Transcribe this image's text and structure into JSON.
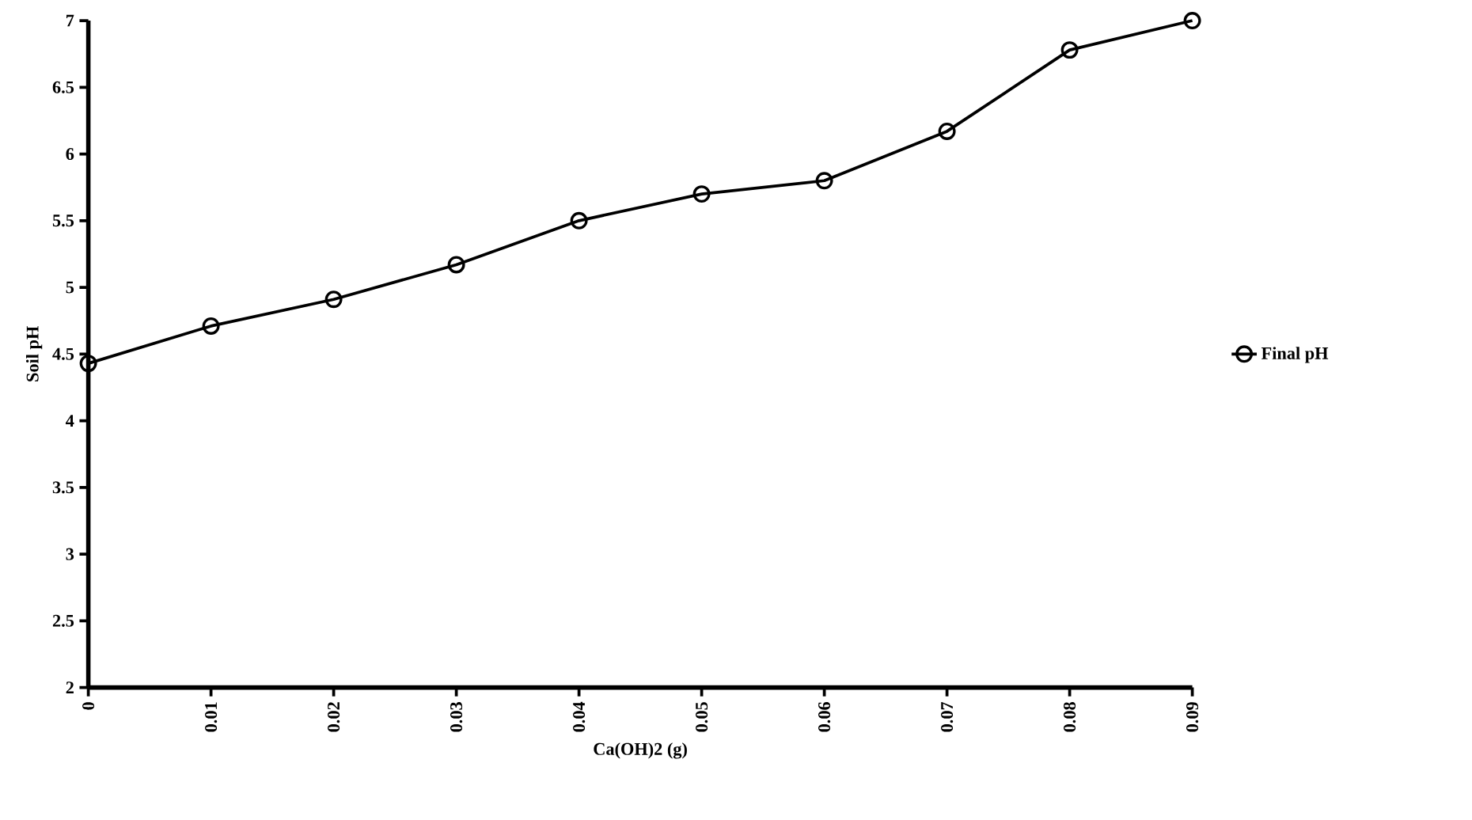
{
  "chart_data": {
    "type": "line",
    "xlabel": "Ca(OH)2 (g)",
    "ylabel": "Soil pH",
    "x": [
      0,
      0.01,
      0.02,
      0.03,
      0.04,
      0.05,
      0.06,
      0.07,
      0.08,
      0.09
    ],
    "series": [
      {
        "name": "Final pH",
        "color": "#000000",
        "values": [
          4.43,
          4.71,
          4.91,
          5.17,
          5.5,
          5.7,
          5.8,
          6.17,
          6.78,
          7.0
        ]
      }
    ],
    "xlim": [
      0,
      0.09
    ],
    "ylim": [
      2,
      7
    ],
    "xticks": [
      0,
      0.01,
      0.02,
      0.03,
      0.04,
      0.05,
      0.06,
      0.07,
      0.08,
      0.09
    ],
    "yticks": [
      2,
      2.5,
      3,
      3.5,
      4,
      4.5,
      5,
      5.5,
      6,
      6.5,
      7
    ],
    "marker": "circle",
    "line_style": "solid",
    "grid": false,
    "legend": "right"
  }
}
